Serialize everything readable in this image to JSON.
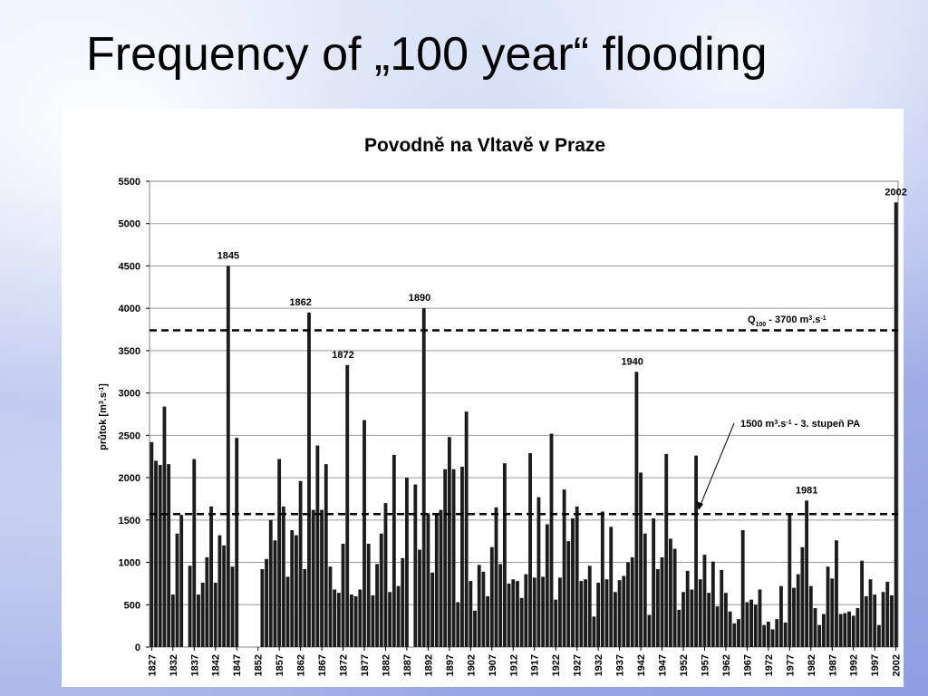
{
  "slide": {
    "title": "Frequency of „100 year“ flooding"
  },
  "chart_data": {
    "type": "bar",
    "title": "Povodně na Vltavě v Praze",
    "ylabel_main": "průtok [m",
    "ylabel_sup1": "3",
    "ylabel_mid": ".s",
    "ylabel_sup2": "-1",
    "ylabel_end": "]",
    "ylim": [
      0,
      5500
    ],
    "yticks": [
      0,
      500,
      1000,
      1500,
      2000,
      2500,
      3000,
      3500,
      4000,
      4500,
      5000,
      5500
    ],
    "xlim": [
      1827,
      2002
    ],
    "xticks": [
      1827,
      1832,
      1837,
      1842,
      1847,
      1852,
      1857,
      1862,
      1867,
      1872,
      1877,
      1882,
      1887,
      1892,
      1897,
      1902,
      1907,
      1912,
      1917,
      1922,
      1927,
      1932,
      1937,
      1942,
      1947,
      1952,
      1957,
      1962,
      1967,
      1972,
      1977,
      1982,
      1987,
      1992,
      1997,
      2002
    ],
    "grid": true,
    "series": [
      {
        "values": [
          2420,
          2200,
          2150,
          2840,
          2160,
          620,
          1340,
          1560,
          0,
          960,
          2220,
          620,
          760,
          1060,
          1660,
          760,
          1320,
          1200,
          4500,
          950,
          2470,
          0,
          0,
          0,
          0,
          0,
          920,
          1040,
          1500,
          1260,
          2220,
          1660,
          830,
          1380,
          1320,
          1960,
          920,
          3950,
          1620,
          2380,
          1620,
          2160,
          950,
          680,
          640,
          1220,
          3330,
          620,
          600,
          680,
          2680,
          1220,
          610,
          980,
          1340,
          1700,
          650,
          2270,
          720,
          1050,
          2000,
          0,
          1920,
          1150,
          4000,
          1580,
          880,
          1560,
          1620,
          2100,
          2480,
          2100,
          530,
          2130,
          2780,
          780,
          430,
          970,
          890,
          600,
          1180,
          1650,
          980,
          2170,
          750,
          800,
          780,
          580,
          860,
          2290,
          820,
          1770,
          830,
          1450,
          2520,
          560,
          820,
          1860,
          1250,
          1520,
          1660,
          780,
          800,
          960,
          360,
          760,
          1600,
          800,
          1420,
          650,
          790,
          840,
          1000,
          1060,
          3250,
          2060,
          1340,
          380,
          1520,
          920,
          1060,
          2280,
          1280,
          1160,
          440,
          650,
          900,
          680,
          2260,
          800,
          1090,
          640,
          1010,
          480,
          910,
          640,
          420,
          280,
          330,
          1380,
          530,
          560,
          500,
          680,
          260,
          300,
          210,
          330,
          720,
          290,
          1580,
          700,
          860,
          1180,
          1730,
          720,
          460,
          260,
          390,
          950,
          810,
          1260,
          390,
          400,
          420,
          370,
          460,
          1020,
          600,
          800,
          620,
          260,
          650,
          770,
          610,
          5250
        ]
      }
    ],
    "annotations": [
      {
        "x": 1845,
        "y": 4500,
        "text": "1845"
      },
      {
        "x": 1862,
        "y": 3950,
        "text": "1862"
      },
      {
        "x": 1872,
        "y": 3330,
        "text": "1872"
      },
      {
        "x": 1890,
        "y": 4000,
        "text": "1890"
      },
      {
        "x": 1940,
        "y": 3250,
        "text": "1940"
      },
      {
        "x": 1981,
        "y": 1730,
        "text": "1981"
      },
      {
        "x": 2002,
        "y": 5250,
        "text": "2002"
      }
    ],
    "reference_lines": [
      {
        "y": 3740,
        "label_main": "Q",
        "label_sub": "100",
        "label_rest": " - 3700 m",
        "label_sup": "3",
        "label_rest2": ".s",
        "label_sup2": "-1"
      },
      {
        "y": 1570,
        "label_main": "1500 m",
        "label_sup": "3",
        "label_rest": ".s",
        "label_sup2": "-1",
        "label_rest2": " - 3. stupeň PA"
      }
    ],
    "colors": {
      "bar": "#1c1c1c",
      "grid": "#9a9a9a",
      "refline": "#000000"
    }
  }
}
